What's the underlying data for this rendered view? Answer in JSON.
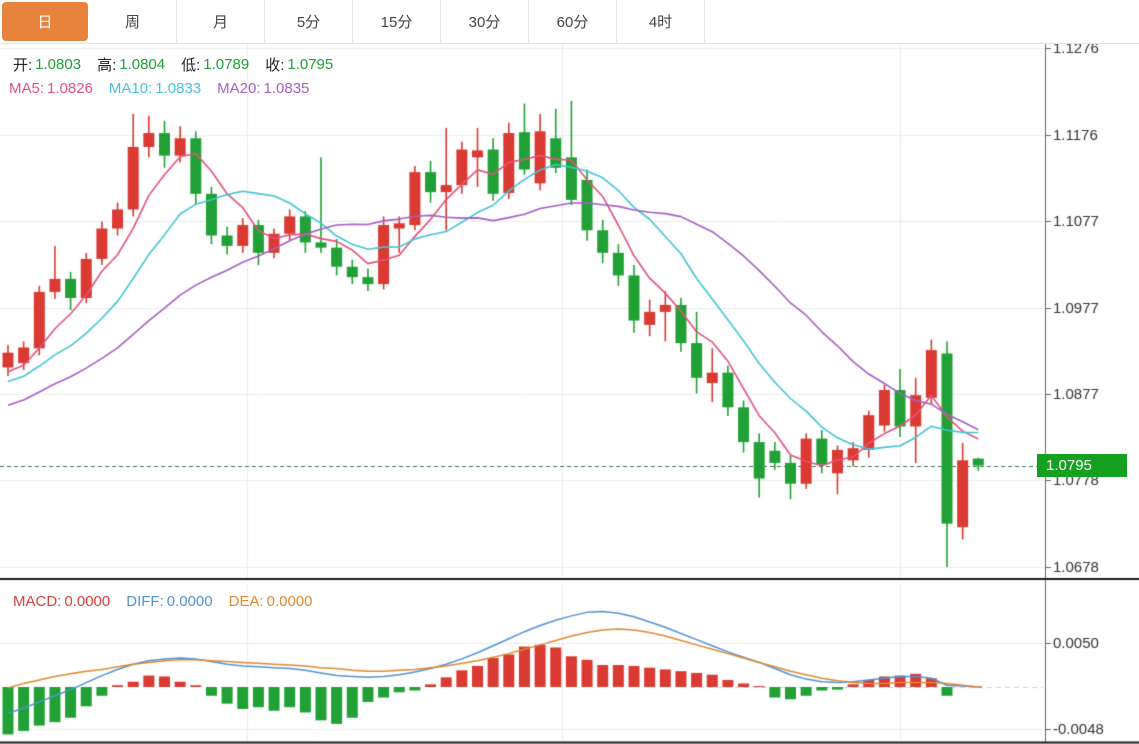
{
  "tabs": [
    {
      "label": "日",
      "active": true
    },
    {
      "label": "周",
      "active": false
    },
    {
      "label": "月",
      "active": false
    },
    {
      "label": "5分",
      "active": false
    },
    {
      "label": "15分",
      "active": false
    },
    {
      "label": "30分",
      "active": false
    },
    {
      "label": "60分",
      "active": false
    },
    {
      "label": "4时",
      "active": false
    }
  ],
  "price_panel": {
    "legend_ohlc": {
      "open_label": "开:",
      "open": "1.0803",
      "high_label": "高:",
      "high": "1.0804",
      "low_label": "低:",
      "low": "1.0789",
      "close_label": "收:",
      "close": "1.0795"
    },
    "legend_ma": {
      "ma5_label": "MA5:",
      "ma5": "1.0826",
      "ma10_label": "MA10:",
      "ma10": "1.0833",
      "ma20_label": "MA20:",
      "ma20": "1.0835"
    },
    "current_price_label": "1.0795",
    "y_tick_labels": [
      "1.1276",
      "1.1176",
      "1.1077",
      "1.0977",
      "1.0877",
      "1.0778",
      "1.0678"
    ]
  },
  "macd_panel": {
    "legend": {
      "macd_label": "MACD:",
      "macd": "0.0000",
      "diff_label": "DIFF:",
      "diff": "0.0000",
      "dea_label": "DEA:",
      "dea": "0.0000"
    },
    "y_tick_labels": [
      "0.0050",
      "-0.0048"
    ]
  },
  "colors": {
    "up": "#DA3A32",
    "down": "#21A135",
    "ma5": "#E5517D",
    "ma10": "#43C3D8",
    "ma20": "#A55FC6",
    "diff_line": "#4E93D9",
    "dea_line": "#E0882F",
    "macd_label": "#D84038",
    "value_green": "#1FA13B",
    "badge_bg": "#15A01F",
    "tab_active_bg": "#E8833D",
    "close_dashed": "#2C7F55",
    "zero_dashed": "#BFDCE8",
    "grid": "#EDEDED",
    "axis": "#666666",
    "tick_text": "#333333",
    "panel_border": "#1C1C1C"
  },
  "chart_data": {
    "type": "candlestick",
    "panels": [
      {
        "name": "price",
        "type": "candlestick",
        "convention": "red=up green=down",
        "y_ticks": [
          1.1276,
          1.1176,
          1.1077,
          1.0977,
          1.0877,
          1.0778,
          1.0678
        ],
        "ylim": [
          1.064,
          1.129
        ],
        "current_price": 1.0795,
        "overlays": [
          "MA5",
          "MA10",
          "MA20"
        ],
        "ma_last_values": {
          "MA5": 1.0826,
          "MA10": 1.0833,
          "MA20": 1.0835
        },
        "candles": [
          [
            1.0908,
            1.0934,
            1.0898,
            1.0925
          ],
          [
            1.0913,
            1.0938,
            1.0905,
            1.0931
          ],
          [
            1.093,
            1.1002,
            1.0922,
            1.0995
          ],
          [
            1.0995,
            1.1048,
            1.0987,
            1.101
          ],
          [
            1.101,
            1.1018,
            1.0974,
            1.0988
          ],
          [
            1.0988,
            1.104,
            1.0982,
            1.1033
          ],
          [
            1.1033,
            1.1076,
            1.1026,
            1.1068
          ],
          [
            1.1068,
            1.1098,
            1.106,
            1.109
          ],
          [
            1.109,
            1.12,
            1.1082,
            1.1162
          ],
          [
            1.1162,
            1.1198,
            1.115,
            1.1178
          ],
          [
            1.1178,
            1.1192,
            1.1138,
            1.1152
          ],
          [
            1.1152,
            1.1186,
            1.1144,
            1.1172
          ],
          [
            1.1172,
            1.118,
            1.1096,
            1.1108
          ],
          [
            1.1108,
            1.1116,
            1.105,
            1.106
          ],
          [
            1.106,
            1.107,
            1.1038,
            1.1048
          ],
          [
            1.1048,
            1.108,
            1.104,
            1.1072
          ],
          [
            1.1072,
            1.1078,
            1.1026,
            1.104
          ],
          [
            1.104,
            1.1068,
            1.1034,
            1.1062
          ],
          [
            1.1062,
            1.109,
            1.1054,
            1.1082
          ],
          [
            1.1082,
            1.1088,
            1.104,
            1.1052
          ],
          [
            1.1052,
            1.115,
            1.104,
            1.1046
          ],
          [
            1.1046,
            1.1056,
            1.1014,
            1.1024
          ],
          [
            1.1024,
            1.1032,
            1.1004,
            1.1012
          ],
          [
            1.1012,
            1.1022,
            1.0996,
            1.1004
          ],
          [
            1.1004,
            1.1082,
            1.0998,
            1.1072
          ],
          [
            1.1068,
            1.1082,
            1.104,
            1.1074
          ],
          [
            1.1072,
            1.114,
            1.1066,
            1.1133
          ],
          [
            1.1133,
            1.1146,
            1.1098,
            1.111
          ],
          [
            1.111,
            1.1184,
            1.1066,
            1.1118
          ],
          [
            1.1118,
            1.1168,
            1.1108,
            1.1159
          ],
          [
            1.115,
            1.1184,
            1.1116,
            1.1158
          ],
          [
            1.1159,
            1.1172,
            1.11,
            1.1108
          ],
          [
            1.1109,
            1.119,
            1.1102,
            1.1178
          ],
          [
            1.1179,
            1.1212,
            1.113,
            1.1136
          ],
          [
            1.112,
            1.12,
            1.1112,
            1.118
          ],
          [
            1.1172,
            1.1206,
            1.1132,
            1.1138
          ],
          [
            1.115,
            1.1215,
            1.1095,
            1.1101
          ],
          [
            1.1124,
            1.1136,
            1.1054,
            1.1066
          ],
          [
            1.1066,
            1.1078,
            1.1028,
            1.104
          ],
          [
            1.104,
            1.105,
            1.1002,
            1.1014
          ],
          [
            1.1014,
            1.1026,
            1.0948,
            1.0962
          ],
          [
            1.0957,
            1.0986,
            1.0944,
            1.0972
          ],
          [
            1.0972,
            1.0996,
            1.0938,
            1.098
          ],
          [
            1.098,
            1.0988,
            1.0926,
            1.0936
          ],
          [
            1.0936,
            1.0972,
            1.0878,
            1.0896
          ],
          [
            1.089,
            1.093,
            1.0868,
            1.0902
          ],
          [
            1.0902,
            1.091,
            1.0852,
            1.0862
          ],
          [
            1.0862,
            1.087,
            1.081,
            1.0822
          ],
          [
            1.0822,
            1.0832,
            1.0758,
            1.078
          ],
          [
            1.0812,
            1.0822,
            1.079,
            1.0798
          ],
          [
            1.0798,
            1.0806,
            1.0756,
            1.0774
          ],
          [
            1.0774,
            1.0832,
            1.0768,
            1.0826
          ],
          [
            1.0826,
            1.0836,
            1.0786,
            1.0796
          ],
          [
            1.0786,
            1.0818,
            1.0762,
            1.0813
          ],
          [
            1.0801,
            1.0822,
            1.0794,
            1.0815
          ],
          [
            1.0813,
            1.0858,
            1.0804,
            1.0853
          ],
          [
            1.0841,
            1.0888,
            1.0834,
            1.0882
          ],
          [
            1.0882,
            1.0906,
            1.0828,
            1.084
          ],
          [
            1.084,
            1.0896,
            1.0798,
            1.0876
          ],
          [
            1.0873,
            1.094,
            1.0866,
            1.0928
          ],
          [
            1.0924,
            1.0938,
            1.0678,
            1.0728
          ],
          [
            1.0724,
            1.0821,
            1.071,
            1.0801
          ],
          [
            1.0803,
            1.0804,
            1.0789,
            1.0795
          ]
        ]
      },
      {
        "name": "macd",
        "type": "bar+line",
        "y_ticks": [
          0.005,
          -0.0048
        ],
        "ylim": [
          -0.0065,
          0.0062
        ],
        "histogram": [
          -0.0054,
          -0.005,
          -0.0044,
          -0.004,
          -0.0035,
          -0.0022,
          -0.001,
          0.0002,
          0.0006,
          0.0013,
          0.0012,
          0.0006,
          0.0002,
          -0.001,
          -0.0019,
          -0.0025,
          -0.0023,
          -0.0027,
          -0.0023,
          -0.0029,
          -0.0038,
          -0.0042,
          -0.0035,
          -0.0017,
          -0.0012,
          -0.0006,
          -0.0004,
          0.0003,
          0.0011,
          0.0019,
          0.0024,
          0.0033,
          0.0037,
          0.0046,
          0.0048,
          0.0045,
          0.0035,
          0.0031,
          0.0025,
          0.0025,
          0.0024,
          0.0022,
          0.002,
          0.0018,
          0.0016,
          0.0014,
          0.0008,
          0.0004,
          0.0001,
          -0.0012,
          -0.0014,
          -0.001,
          -0.0004,
          -0.0003,
          0.0003,
          0.0008,
          0.0012,
          0.0013,
          0.0015,
          0.001,
          -0.001,
          0.0,
          0.0
        ],
        "diff": [
          -0.003,
          -0.0024,
          -0.0017,
          -0.001,
          -0.0003,
          0.0005,
          0.0013,
          0.002,
          0.0026,
          0.003,
          0.0032,
          0.0033,
          0.0032,
          0.0029,
          0.0026,
          0.0024,
          0.0023,
          0.0022,
          0.0021,
          0.0019,
          0.0016,
          0.0013,
          0.0012,
          0.0011,
          0.0012,
          0.0014,
          0.0017,
          0.0021,
          0.0026,
          0.0032,
          0.0039,
          0.0047,
          0.0055,
          0.0063,
          0.007,
          0.0076,
          0.0081,
          0.0085,
          0.0086,
          0.0084,
          0.008,
          0.0074,
          0.0068,
          0.0061,
          0.0054,
          0.0047,
          0.004,
          0.0034,
          0.0028,
          0.0021,
          0.0014,
          0.0009,
          0.0006,
          0.0005,
          0.0006,
          0.0008,
          0.001,
          0.0012,
          0.0012,
          0.001,
          0.0002,
          0.0001,
          0.0
        ],
        "dea": [
          -0.0001,
          0.0004,
          0.0008,
          0.0012,
          0.0015,
          0.0018,
          0.002,
          0.0023,
          0.0026,
          0.0028,
          0.003,
          0.0031,
          0.0031,
          0.003,
          0.0029,
          0.0028,
          0.0027,
          0.0026,
          0.0025,
          0.0024,
          0.0022,
          0.0021,
          0.0019,
          0.0018,
          0.0018,
          0.0019,
          0.002,
          0.0022,
          0.0024,
          0.0027,
          0.003,
          0.0034,
          0.0038,
          0.0043,
          0.0048,
          0.0053,
          0.0058,
          0.0062,
          0.0065,
          0.0066,
          0.0065,
          0.0062,
          0.0058,
          0.0053,
          0.0048,
          0.0043,
          0.0038,
          0.0033,
          0.0028,
          0.0023,
          0.0018,
          0.0014,
          0.001,
          0.0007,
          0.0005,
          0.0004,
          0.0004,
          0.0005,
          0.0005,
          0.0005,
          0.0004,
          0.0002,
          0.0
        ]
      }
    ]
  }
}
